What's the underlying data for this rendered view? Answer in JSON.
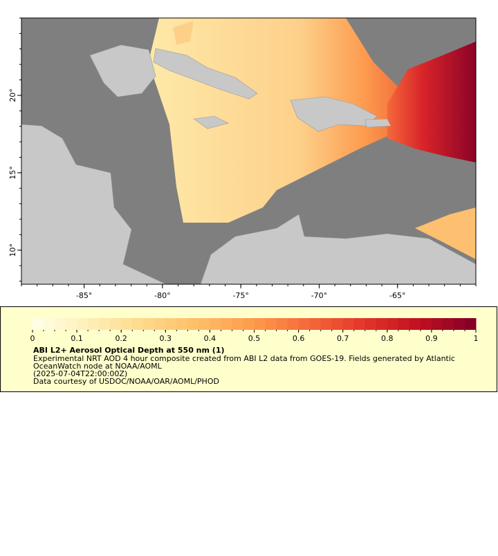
{
  "map": {
    "xlim": [
      -89,
      -60
    ],
    "ylim": [
      7.8,
      25
    ],
    "xticks": [
      {
        "value": -85,
        "label": "-85°"
      },
      {
        "value": -80,
        "label": "-80°"
      },
      {
        "value": -75,
        "label": "-75°"
      },
      {
        "value": -70,
        "label": "-70°"
      },
      {
        "value": -65,
        "label": "-65°"
      }
    ],
    "yticks": [
      {
        "value": 10,
        "label": "10°"
      },
      {
        "value": 15,
        "label": "15°"
      },
      {
        "value": 20,
        "label": "20°"
      }
    ]
  },
  "colorbar": {
    "lim": [
      0,
      1
    ],
    "ticks": [
      0,
      0.1,
      0.2,
      0.3,
      0.4,
      0.5,
      0.6,
      0.7,
      0.8,
      0.9,
      1
    ],
    "colors": [
      "#fffee8",
      "#feefb8",
      "#fed98a",
      "#febd68",
      "#fd9a4c",
      "#f5683a",
      "#e3342a",
      "#bf0f22",
      "#800026"
    ]
  },
  "legend": {
    "title": "ABI L2+ Aerosol Optical Depth at 550 nm (1)",
    "lines": [
      "Experimental NRT AOD 4 hour composite created from ABI L2 data from GOES-19. Fields generated by Atlantic",
      "OceanWatch node at NOAA/AOML",
      "(2025-07-04T22:00:00Z)",
      "Data courtesy of USDOC/NOAA/OAR/AOML/PHOD"
    ]
  }
}
